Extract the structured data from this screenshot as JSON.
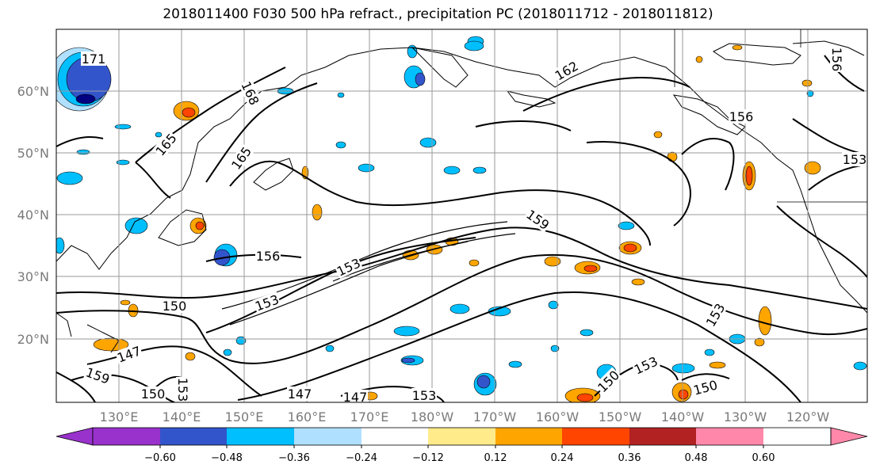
{
  "title": "2018011400 F030 500 hPa refract., precipitation PC (2018011712 - 2018011812)",
  "lat_labels": [
    "60°N",
    "50°N",
    "40°N",
    "30°N",
    "20°N"
  ],
  "lon_labels": [
    "130°E",
    "140°E",
    "150°E",
    "160°E",
    "170°E",
    "180°W",
    "170°W",
    "160°W",
    "150°W",
    "140°W",
    "130°W",
    "120°W"
  ],
  "contour_labels": [
    "171",
    "168",
    "165",
    "165",
    "162",
    "156",
    "159",
    "156",
    "153",
    "153",
    "150",
    "153",
    "147",
    "159",
    "153",
    "150",
    "147",
    "147",
    "153",
    "150",
    "153",
    "150",
    "156",
    "153"
  ],
  "colorbar": {
    "ticks": [
      "−0.60",
      "−0.48",
      "−0.36",
      "−0.24",
      "−0.12",
      "0.12",
      "0.24",
      "0.36",
      "0.48",
      "0.60"
    ],
    "colors": [
      "#9932cc",
      "#000080",
      "#3355cc",
      "#00bfff",
      "#b0e0ff",
      "#ffffff",
      "#ffeb8a",
      "#ffa500",
      "#ff4500",
      "#b22222",
      "#ff88aa"
    ]
  },
  "colors": {
    "blue_dark": "#3355cc",
    "blue_navy": "#000080",
    "blue_mid": "#00bfff",
    "blue_light": "#b0e0ff",
    "yellow": "#ffeb8a",
    "orange": "#ffa500",
    "red": "#ff4500",
    "darkred": "#b22222"
  }
}
